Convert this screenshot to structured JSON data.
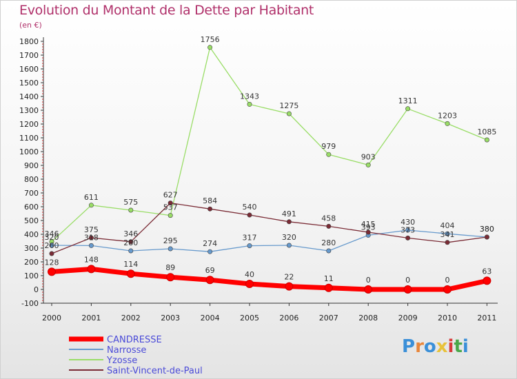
{
  "title": "Evolution du Montant de la Dette par Habitant",
  "subtitle": "(en €)",
  "logo": {
    "text": "Proxiti",
    "letters": [
      {
        "ch": "P",
        "color": "#3a8fd8"
      },
      {
        "ch": "r",
        "color": "#e8863a"
      },
      {
        "ch": "o",
        "color": "#3a8fd8"
      },
      {
        "ch": "x",
        "color": "#e8c23a"
      },
      {
        "ch": "i",
        "color": "#d83a3a"
      },
      {
        "ch": "t",
        "color": "#4aa84a"
      },
      {
        "ch": "i",
        "color": "#3a8fd8"
      }
    ]
  },
  "chart_data": {
    "type": "line",
    "title": "Evolution du Montant de la Dette par Habitant",
    "subtitle": "(en €)",
    "x": [
      "2000",
      "2001",
      "2002",
      "2003",
      "2004",
      "2005",
      "2006",
      "2007",
      "2008",
      "2009",
      "2010",
      "2011"
    ],
    "ylim": [
      -100,
      1800
    ],
    "yticks": [
      -100,
      0,
      100,
      200,
      300,
      400,
      500,
      600,
      700,
      800,
      900,
      1000,
      1100,
      1200,
      1300,
      1400,
      1500,
      1600,
      1700,
      1800
    ],
    "grid": false,
    "legend_position": "bottom-left",
    "series": [
      {
        "name": "CANDRESSE",
        "color": "#ff0000",
        "values": [
          128,
          148,
          114,
          89,
          69,
          40,
          22,
          11,
          0,
          0,
          0,
          63
        ]
      },
      {
        "name": "Narrosse",
        "color": "#6699cc",
        "values": [
          320,
          318,
          280,
          295,
          274,
          317,
          320,
          280,
          393,
          430,
          404,
          380
        ]
      },
      {
        "name": "Yzosse",
        "color": "#99dd66",
        "values": [
          346,
          611,
          575,
          537,
          1756,
          1343,
          1275,
          979,
          903,
          1311,
          1203,
          1085
        ]
      },
      {
        "name": "Saint-Vincent-de-Paul",
        "color": "#7a2b35",
        "values": [
          260,
          375,
          346,
          627,
          584,
          540,
          491,
          458,
          415,
          373,
          341,
          380
        ]
      }
    ]
  }
}
